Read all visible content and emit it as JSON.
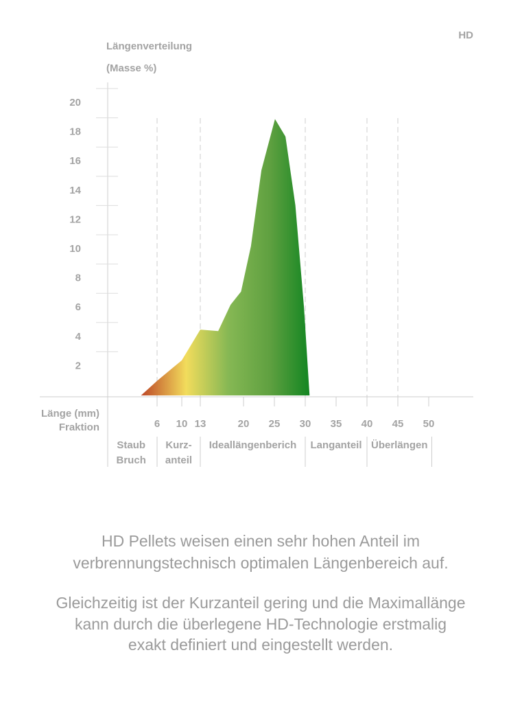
{
  "badge": "HD",
  "chart_data": {
    "type": "area",
    "title": "Längenverteilung",
    "subtitle": "(Masse %)",
    "x_label": "Länge (mm)",
    "fraction_label": "Fraktion",
    "x": [
      3.4,
      6,
      10,
      13,
      15.9,
      17.9,
      19.6,
      21.2,
      22.9,
      25.1,
      26.8,
      28.4,
      29.8,
      30.7
    ],
    "values": [
      0,
      1,
      2.4,
      4.5,
      4.4,
      6.2,
      7.1,
      10.2,
      15.4,
      18.9,
      17.7,
      13,
      6,
      0
    ],
    "fill_colors": [
      "#c0502a",
      "#f2dc5c",
      "#86b854",
      "#5fa040",
      "#0e8420"
    ],
    "xlim": [
      -2,
      57
    ],
    "ylim": [
      0,
      20
    ],
    "xticks": [
      6,
      10,
      13,
      20,
      25,
      30,
      35,
      40,
      45,
      50
    ],
    "yticks": [
      2,
      4,
      6,
      8,
      10,
      12,
      14,
      16,
      18,
      20
    ],
    "boundaries": [
      6,
      13,
      30,
      40,
      45
    ],
    "fractions": [
      {
        "lines": [
          "Staub",
          "Bruch"
        ],
        "from": -2.4,
        "to": 6
      },
      {
        "lines": [
          "Kurz-",
          "anteil"
        ],
        "from": 6,
        "to": 13
      },
      {
        "lines": [
          "Ideallängenberich"
        ],
        "from": 13,
        "to": 30
      },
      {
        "lines": [
          "Langanteil"
        ],
        "from": 30,
        "to": 40
      },
      {
        "lines": [
          "Überlängen"
        ],
        "from": 40,
        "to": 50.5
      }
    ]
  },
  "paragraphs": [
    [
      "HD Pellets weisen einen sehr hohen Anteil im",
      "verbrennungstechnisch optimalen Längenbereich auf."
    ],
    [
      "Gleichzeitig ist der Kurzanteil gering und die Maximallänge",
      "kann durch die überlegene HD-Technologie erstmalig",
      "exakt definiert und eingestellt werden."
    ]
  ]
}
